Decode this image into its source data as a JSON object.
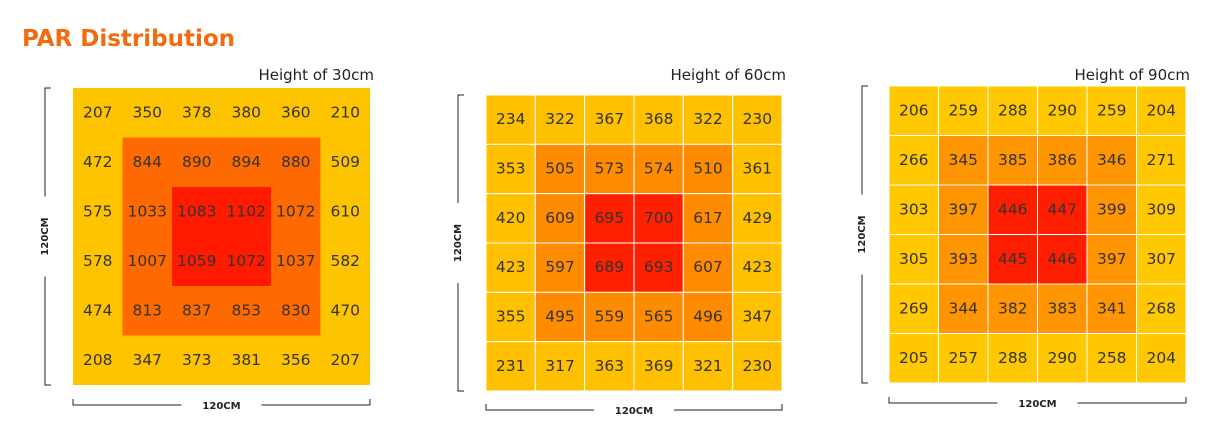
{
  "title": "PAR Distribution",
  "panels": [
    {
      "height": "Height of 30cm",
      "depth_label": "120CM",
      "width_label": "120CM",
      "colors": [
        "#ffc400",
        "#ff6a00",
        "#ff1a00"
      ],
      "grid": [
        [
          207,
          350,
          378,
          380,
          360,
          210
        ],
        [
          472,
          844,
          890,
          894,
          880,
          509
        ],
        [
          575,
          1033,
          1083,
          1102,
          1072,
          610
        ],
        [
          578,
          1007,
          1059,
          1072,
          1037,
          582
        ],
        [
          474,
          813,
          837,
          853,
          830,
          470
        ],
        [
          208,
          347,
          373,
          381,
          356,
          207
        ]
      ]
    },
    {
      "height": "Height of 60cm",
      "depth_label": "120CM",
      "width_label": "120CM",
      "colors": [
        "#ffc000",
        "#ff8c00",
        "#ff2000"
      ],
      "grid": [
        [
          234,
          322,
          367,
          368,
          322,
          230
        ],
        [
          353,
          505,
          573,
          574,
          510,
          361
        ],
        [
          420,
          609,
          695,
          700,
          617,
          429
        ],
        [
          423,
          597,
          689,
          693,
          607,
          423
        ],
        [
          355,
          495,
          559,
          565,
          496,
          347
        ],
        [
          231,
          317,
          363,
          369,
          321,
          230
        ]
      ]
    },
    {
      "height": "Height of 90cm",
      "depth_label": "120CM",
      "width_label": "120CM",
      "colors": [
        "#ffc800",
        "#ff9500",
        "#ff1e00"
      ],
      "grid": [
        [
          206,
          259,
          288,
          290,
          259,
          204
        ],
        [
          266,
          345,
          385,
          386,
          346,
          271
        ],
        [
          303,
          397,
          446,
          447,
          399,
          309
        ],
        [
          305,
          393,
          445,
          446,
          397,
          307
        ],
        [
          269,
          344,
          382,
          383,
          341,
          268
        ],
        [
          205,
          257,
          288,
          290,
          258,
          204
        ]
      ]
    }
  ]
}
